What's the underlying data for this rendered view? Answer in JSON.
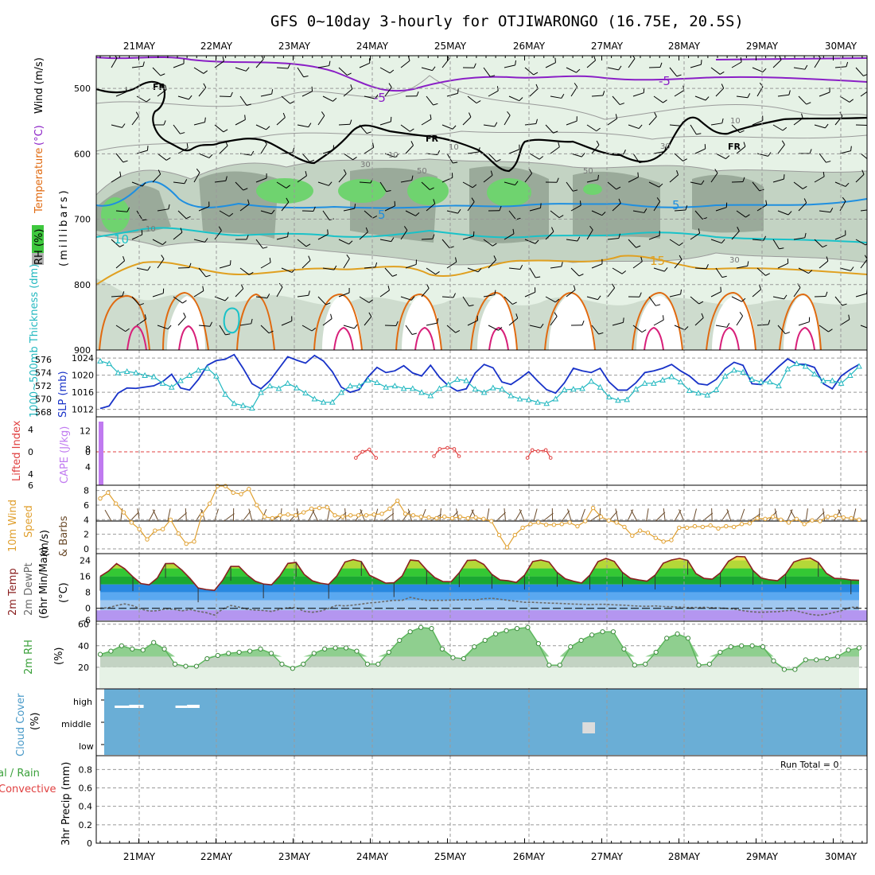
{
  "title": "GFS 0~10day 3-hourly for OTJIWARONGO (16.75E, 20.5S)",
  "colors": {
    "gray": "#9a9a9a",
    "rh_light": "#e6f2e6",
    "rh_mid": "#c3d3c3",
    "rh_dark": "#9aaa9a",
    "rh_green": "#6fd36f",
    "purple": "#8a1fc6",
    "blue": "#1f8fe0",
    "cyan": "#19c2c8",
    "orange": "#e0a020",
    "dark_orange": "#e06a10",
    "magenta": "#d8207a",
    "slp": "#1832c8",
    "thk": "#22b8c0",
    "cape": "#c07af0",
    "li": "#e04040",
    "wind": "#e0a030",
    "barb": "#6a4a2a",
    "temp": "#8a2020",
    "dew": "#6a6a6a",
    "rh2": "#5ab55a",
    "cloud": "#6aaed6"
  },
  "chart_data": [
    {
      "type": "heatmap",
      "name": "upper_air_cross_section",
      "ylabel_parts": [
        "RH (%)",
        "Temperature",
        "(°C)",
        "Wind (m/s)"
      ],
      "ylabel_sub": "(millibars)",
      "x": [
        "21MAY",
        "22MAY",
        "23MAY",
        "24MAY",
        "25MAY",
        "26MAY",
        "27MAY",
        "28MAY",
        "29MAY",
        "30MAY"
      ],
      "ylim": [
        450,
        900
      ],
      "yticks": [
        500,
        600,
        700,
        800,
        900
      ],
      "contour_labels": [
        "FR",
        "FR",
        "FR",
        "-5",
        "-5",
        "5",
        "5",
        "10",
        "15",
        "10",
        "10",
        "30",
        "30",
        "50",
        "50",
        "10",
        "10",
        "30"
      ]
    },
    {
      "type": "line",
      "name": "slp_thickness",
      "ylabel": "1000~500mb Thickness (dm)",
      "ylabel2": "SLP (mb)",
      "y_left_ticks": [
        568,
        570,
        572,
        574,
        576
      ],
      "y_right_ticks": [
        1012,
        1016,
        1020,
        1024
      ],
      "ylim_left": [
        568,
        577
      ],
      "ylim_right": [
        1011,
        1025.5
      ],
      "series": [
        {
          "name": "SLP",
          "axis": "right",
          "values": [
            1012.2,
            1012.8,
            1015.8,
            1017.0,
            1016.9,
            1017.2,
            1017.5,
            1018.5,
            1020.2,
            1017.0,
            1016.5,
            1019.0,
            1022.3,
            1023.4,
            1023.7,
            1024.8,
            1021.6,
            1018.0,
            1016.8,
            1018.7,
            1021.5,
            1024.3,
            1023.5,
            1022.8,
            1024.6,
            1023.3,
            1020.8,
            1017.2,
            1016.0,
            1016.6,
            1019.6,
            1021.8,
            1020.6,
            1021.0,
            1022.2,
            1020.5,
            1019.8,
            1022.3,
            1019.5,
            1017.5,
            1016.3,
            1016.8,
            1020.5,
            1022.5,
            1021.7,
            1018.4,
            1017.8,
            1019.2,
            1020.8,
            1018.6,
            1016.6,
            1015.8,
            1018.2,
            1021.6,
            1021.0,
            1020.6,
            1021.6,
            1018.4,
            1016.5,
            1016.5,
            1018.2,
            1020.6,
            1021.0,
            1021.6,
            1022.5,
            1021.0,
            1019.8,
            1018.0,
            1017.7,
            1019.0,
            1021.5,
            1023.0,
            1022.3,
            1018.0,
            1017.8,
            1020.0,
            1022.0,
            1023.8,
            1022.6,
            1022.5,
            1021.8,
            1018.0,
            1016.8,
            1019.8,
            1021.3,
            1022.5
          ]
        },
        {
          "name": "Thickness",
          "axis": "left",
          "values": [
            575.8,
            575.4,
            574.0,
            574.2,
            574.0,
            573.6,
            573.4,
            572.4,
            571.8,
            572.8,
            573.6,
            574.4,
            574.7,
            573.5,
            570.7,
            569.3,
            569.0,
            568.6,
            571.0,
            572.0,
            571.6,
            572.4,
            571.7,
            570.9,
            570.0,
            569.5,
            569.5,
            571.0,
            572.0,
            572.0,
            572.9,
            572.5,
            571.8,
            572.0,
            571.6,
            571.6,
            571.0,
            570.5,
            571.6,
            572.2,
            573.0,
            572.8,
            571.5,
            571.0,
            571.7,
            571.5,
            570.5,
            570.0,
            569.9,
            569.5,
            569.3,
            570.0,
            571.4,
            571.5,
            571.6,
            572.7,
            571.8,
            570.3,
            569.8,
            569.9,
            571.5,
            572.4,
            572.4,
            572.9,
            573.4,
            572.6,
            571.3,
            570.9,
            570.6,
            571.4,
            573.5,
            574.4,
            574.1,
            573.0,
            572.6,
            572.6,
            572.0,
            574.6,
            575.4,
            575.0,
            573.8,
            572.8,
            572.8,
            572.4,
            573.6,
            575.0
          ]
        }
      ]
    },
    {
      "type": "bar",
      "name": "cape_lifted_index",
      "ylabel": "Lifted Index",
      "ylabel2": "CAPE (J/kg)",
      "y_li_ticks": [
        -4,
        0,
        4,
        6
      ],
      "y_cape_ticks": [
        4,
        8,
        12
      ],
      "series": [
        {
          "name": "CAPE",
          "bars": [
            {
              "index": 0,
              "value": 14
            }
          ]
        },
        {
          "name": "Lifted Index",
          "segments": [
            [
              [
                26.5,
                6.8
              ],
              [
                27.2,
                5.7
              ],
              [
                27.9,
                5.3
              ],
              [
                28.6,
                6.8
              ]
            ],
            [
              [
                34.6,
                6.5
              ],
              [
                35.2,
                5.2
              ],
              [
                36.0,
                5.0
              ],
              [
                36.7,
                5.2
              ],
              [
                37.2,
                6.5
              ]
            ],
            [
              [
                44.3,
                6.8
              ],
              [
                44.8,
                5.4
              ],
              [
                45.4,
                5.6
              ],
              [
                46.2,
                5.4
              ],
              [
                46.7,
                6.8
              ]
            ]
          ]
        }
      ]
    },
    {
      "type": "line",
      "name": "wind10m",
      "ylabel": "10m Wind Speed (m/s) & Barbs",
      "yticks": [
        0,
        2,
        4,
        6,
        8
      ],
      "ylim": [
        0,
        8.5
      ],
      "series": [
        {
          "name": "10m Wind Speed",
          "values": [
            6.9,
            7.7,
            6.2,
            5.0,
            3.6,
            2.7,
            1.3,
            2.5,
            2.7,
            4.0,
            2.1,
            0.7,
            1.0,
            4.7,
            6.2,
            8.6,
            8.6,
            7.7,
            7.5,
            8.2,
            6.0,
            4.4,
            4.2,
            4.6,
            4.7,
            4.6,
            5.0,
            5.5,
            5.6,
            5.7,
            4.6,
            4.4,
            4.6,
            4.6,
            4.6,
            4.7,
            4.8,
            5.5,
            6.6,
            4.8,
            4.6,
            4.4,
            4.3,
            4.2,
            4.4,
            4.2,
            4.4,
            4.2,
            4.3,
            4.1,
            3.8,
            1.9,
            0.2,
            1.9,
            2.9,
            3.4,
            3.6,
            3.3,
            3.3,
            3.4,
            3.6,
            3.1,
            3.8,
            5.6,
            4.4,
            3.9,
            3.6,
            3.0,
            1.8,
            2.5,
            2.2,
            1.5,
            1.0,
            1.2,
            2.9,
            2.9,
            3.1,
            3.0,
            3.2,
            2.8,
            3.1,
            3.0,
            3.4,
            3.5,
            4.2,
            4.1,
            4.4,
            4.0,
            3.6,
            4.1,
            3.4,
            3.9,
            3.8,
            4.4,
            4.5,
            4.3,
            4.2,
            4.0
          ]
        }
      ]
    },
    {
      "type": "area",
      "name": "temp2m",
      "ylabel": "2m Temp 2m DewPt (6hr Min/Max) (°C)",
      "yticks": [
        -6,
        0,
        8,
        16,
        24
      ],
      "tick_labels": [
        "-6",
        "0",
        "8",
        "16",
        "24"
      ],
      "ylim": [
        -6.5,
        27
      ],
      "series": [
        {
          "name": "2m Temp",
          "values": [
            16.0,
            18.6,
            22.4,
            19.8,
            15.8,
            12.4,
            11.8,
            15.2,
            22.4,
            22.5,
            19.2,
            15.0,
            10.2,
            9.4,
            9.0,
            14.0,
            21.0,
            21.0,
            16.8,
            13.6,
            12.2,
            11.8,
            16.2,
            22.5,
            23.0,
            17.0,
            13.8,
            12.6,
            12.0,
            16.2,
            23.2,
            24.4,
            23.4,
            16.6,
            14.6,
            12.6,
            12.8,
            16.2,
            24.2,
            23.8,
            19.2,
            15.4,
            13.4,
            13.3,
            17.8,
            24.0,
            24.2,
            22.0,
            17.0,
            14.2,
            13.8,
            13.0,
            16.6,
            23.4,
            24.2,
            23.2,
            18.0,
            14.8,
            13.6,
            12.7,
            16.6,
            23.4,
            25.0,
            23.5,
            18.0,
            15.0,
            14.2,
            13.6,
            16.6,
            22.6,
            24.2,
            25.0,
            24.0,
            17.4,
            15.0,
            14.6,
            17.8,
            23.6,
            26.0,
            25.8,
            19.0,
            15.2,
            14.3,
            13.8,
            17.2,
            23.2,
            24.6,
            25.2,
            23.0,
            17.5,
            15.0,
            14.8,
            14.2,
            14.0
          ]
        },
        {
          "name": "2m DewPt",
          "values": [
            0.0,
            0.3,
            1.4,
            2.2,
            1.3,
            -0.4,
            -1.4,
            -1.2,
            -0.3,
            -0.5,
            -1.3,
            -0.6,
            -1.5,
            -2.2,
            -3.4,
            -0.4,
            1.4,
            0.6,
            -0.5,
            -0.9,
            -1.1,
            -1.6,
            -0.5,
            0.3,
            0.3,
            -1.5,
            -2.0,
            -1.4,
            0.0,
            1.5,
            1.2,
            1.6,
            2.1,
            2.7,
            3.0,
            3.5,
            4.0,
            4.0,
            5.5,
            4.6,
            4.0,
            4.0,
            4.0,
            4.1,
            4.2,
            4.3,
            4.1,
            4.8,
            5.0,
            4.5,
            4.0,
            3.5,
            3.0,
            3.0,
            2.8,
            2.6,
            2.5,
            2.3,
            2.1,
            2.0,
            1.8,
            2.0,
            2.0,
            1.7,
            1.6,
            1.3,
            1.1,
            1.0,
            1.2,
            0.9,
            0.8,
            0.6,
            0.4,
            0.4,
            0.5,
            0.3,
            0.1,
            -0.1,
            -0.6,
            -1.3,
            -1.8,
            -2.0,
            -1.8,
            -1.7,
            -1.2,
            -1.0,
            -2.0,
            -3.0,
            -3.5,
            -3.0,
            -2.0,
            -1.0,
            0.5,
            0.5
          ]
        }
      ]
    },
    {
      "type": "area",
      "name": "rh2m",
      "ylabel": "2m RH (%)",
      "yticks": [
        20,
        40,
        60
      ],
      "ylim": [
        0,
        62
      ],
      "series": [
        {
          "name": "2m RH",
          "values": [
            32,
            35,
            40,
            37,
            36,
            43,
            37,
            23,
            21,
            21,
            28,
            31,
            33,
            34,
            35,
            37,
            33,
            23,
            19,
            23,
            33,
            37,
            38,
            38,
            35,
            23,
            23,
            34,
            45,
            53,
            57,
            56,
            37,
            29,
            28,
            39,
            45,
            51,
            54,
            56,
            57,
            42,
            22,
            22,
            39,
            45,
            50,
            53,
            53,
            37,
            22,
            23,
            34,
            47,
            51,
            47,
            22,
            23,
            34,
            39,
            40,
            40,
            39,
            26,
            18,
            18,
            27,
            27,
            28,
            30,
            36,
            38
          ]
        }
      ]
    },
    {
      "type": "heatmap",
      "name": "cloud_cover",
      "ylabel": "Cloud Cover (%)",
      "levels": [
        "high",
        "middle",
        "low"
      ],
      "blocks": [
        {
          "level": "high",
          "start": 1.5,
          "end": 3.0,
          "cover": 20
        },
        {
          "level": "high",
          "start": 3.0,
          "end": 4.5,
          "cover": 40
        },
        {
          "level": "high",
          "start": 7.8,
          "end": 9.0,
          "cover": 20
        },
        {
          "level": "high",
          "start": 9.0,
          "end": 10.3,
          "cover": 40
        },
        {
          "level": "middle",
          "start": 50.0,
          "end": 51.3,
          "cover": 60
        }
      ]
    },
    {
      "type": "bar",
      "name": "precip_3hr",
      "ylabel_parts": [
        "Total / Rain",
        "Convective",
        "3hr Precip (mm)"
      ],
      "yticks": [
        0,
        0.2,
        0.4,
        0.6,
        0.8
      ],
      "tick_labels": [
        "0",
        "0.2",
        "0.4",
        "0.6",
        "0.8"
      ],
      "ylim": [
        0,
        0.95
      ],
      "run_total": "Run Total = 0"
    }
  ]
}
